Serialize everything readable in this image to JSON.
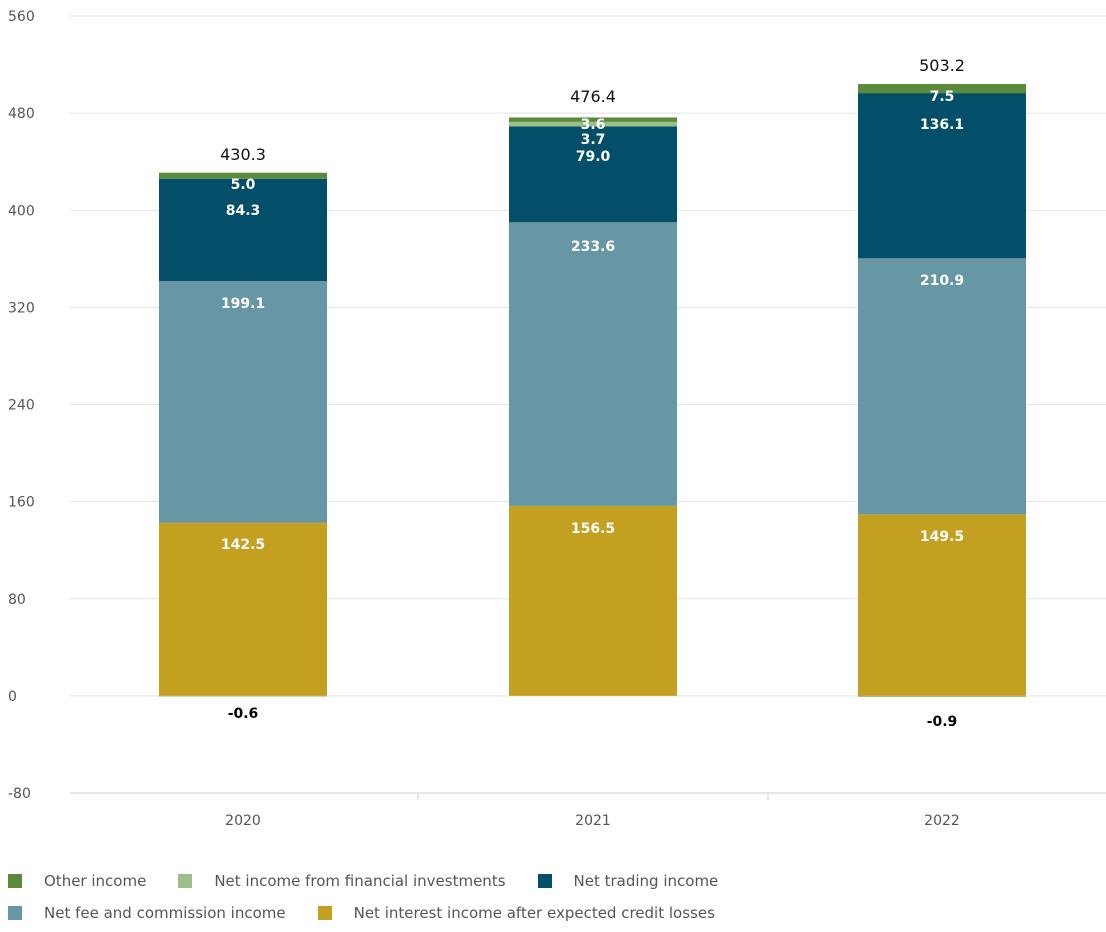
{
  "chart_data": {
    "type": "bar",
    "stacked": true,
    "categories": [
      "2020",
      "2021",
      "2022"
    ],
    "ylim": [
      -80,
      560
    ],
    "yticks": [
      560,
      480,
      400,
      320,
      240,
      160,
      80,
      0,
      -80
    ],
    "grid": true,
    "legend_position": "bottom",
    "series": [
      {
        "name": "Net interest income after expected credit losses",
        "color": "#c4a020",
        "values": [
          142.5,
          156.5,
          149.5
        ],
        "labels": [
          "142.5",
          "156.5",
          "149.5"
        ]
      },
      {
        "name": "Net fee and commission income",
        "color": "#6796a4",
        "values": [
          199.1,
          233.6,
          210.9
        ],
        "labels": [
          "199.1",
          "233.6",
          "210.9"
        ]
      },
      {
        "name": "Net trading income",
        "color": "#034f6a",
        "values": [
          84.3,
          79.0,
          136.1
        ],
        "labels": [
          "84.3",
          "79.0",
          "136.1"
        ]
      },
      {
        "name": "Net income from financial investments",
        "color": "#9bbf87",
        "values": [
          -0.6,
          3.7,
          -0.9
        ],
        "labels": [
          "-0.6",
          "3.7",
          "-0.9"
        ]
      },
      {
        "name": "Other income",
        "color": "#5a8a3a",
        "values": [
          5.0,
          3.6,
          7.5
        ],
        "labels": [
          "5.0",
          "3.6",
          "7.5"
        ]
      }
    ],
    "totals": [
      "430.3",
      "476.4",
      "503.2"
    ]
  },
  "legend": {
    "rows": [
      [
        {
          "name": "Other income",
          "color": "#5a8a3a"
        },
        {
          "name": "Net income from financial investments",
          "color": "#9bbf87"
        },
        {
          "name": "Net trading income",
          "color": "#034f6a"
        }
      ],
      [
        {
          "name": "Net fee and commission income",
          "color": "#6796a4"
        },
        {
          "name": "Net interest income after expected credit losses",
          "color": "#c4a020"
        }
      ]
    ]
  }
}
